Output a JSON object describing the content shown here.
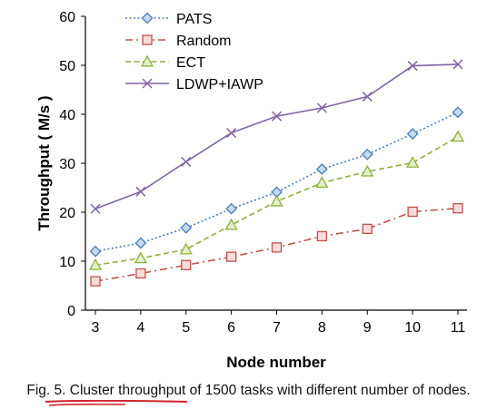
{
  "chart_data": {
    "type": "line",
    "title": "",
    "xlabel": "Node number",
    "ylabel": "Throughput ( M/s )",
    "x": [
      3,
      4,
      5,
      6,
      7,
      8,
      9,
      10,
      11
    ],
    "xlim": [
      3,
      11
    ],
    "ylim": [
      0,
      60
    ],
    "yticks": [
      0,
      10,
      20,
      30,
      40,
      50,
      60
    ],
    "grid": false,
    "legend": "top-left",
    "series": [
      {
        "name": "PATS",
        "color": "#4a7ebb",
        "marker": "diamond",
        "dash": "dotted",
        "values": [
          12.0,
          13.7,
          16.8,
          20.7,
          24.1,
          28.8,
          31.8,
          36.0,
          40.4
        ]
      },
      {
        "name": "Random",
        "color": "#c0504d",
        "marker": "square",
        "dash": "dashdot",
        "values": [
          5.9,
          7.5,
          9.2,
          10.9,
          12.8,
          15.1,
          16.6,
          20.1,
          20.8
        ]
      },
      {
        "name": "ECT",
        "color": "#8db03a",
        "marker": "triangle",
        "dash": "dashed",
        "values": [
          9.2,
          10.6,
          12.4,
          17.4,
          22.2,
          26.0,
          28.3,
          30.1,
          35.4
        ]
      },
      {
        "name": "LDWP+IAWP",
        "color": "#8064a2",
        "marker": "x",
        "dash": "solid",
        "values": [
          20.7,
          24.2,
          30.3,
          36.2,
          39.6,
          41.3,
          43.6,
          49.9,
          50.2
        ]
      }
    ]
  },
  "caption": "Fig. 5. Cluster throughput of 1500 tasks with different number of nodes."
}
